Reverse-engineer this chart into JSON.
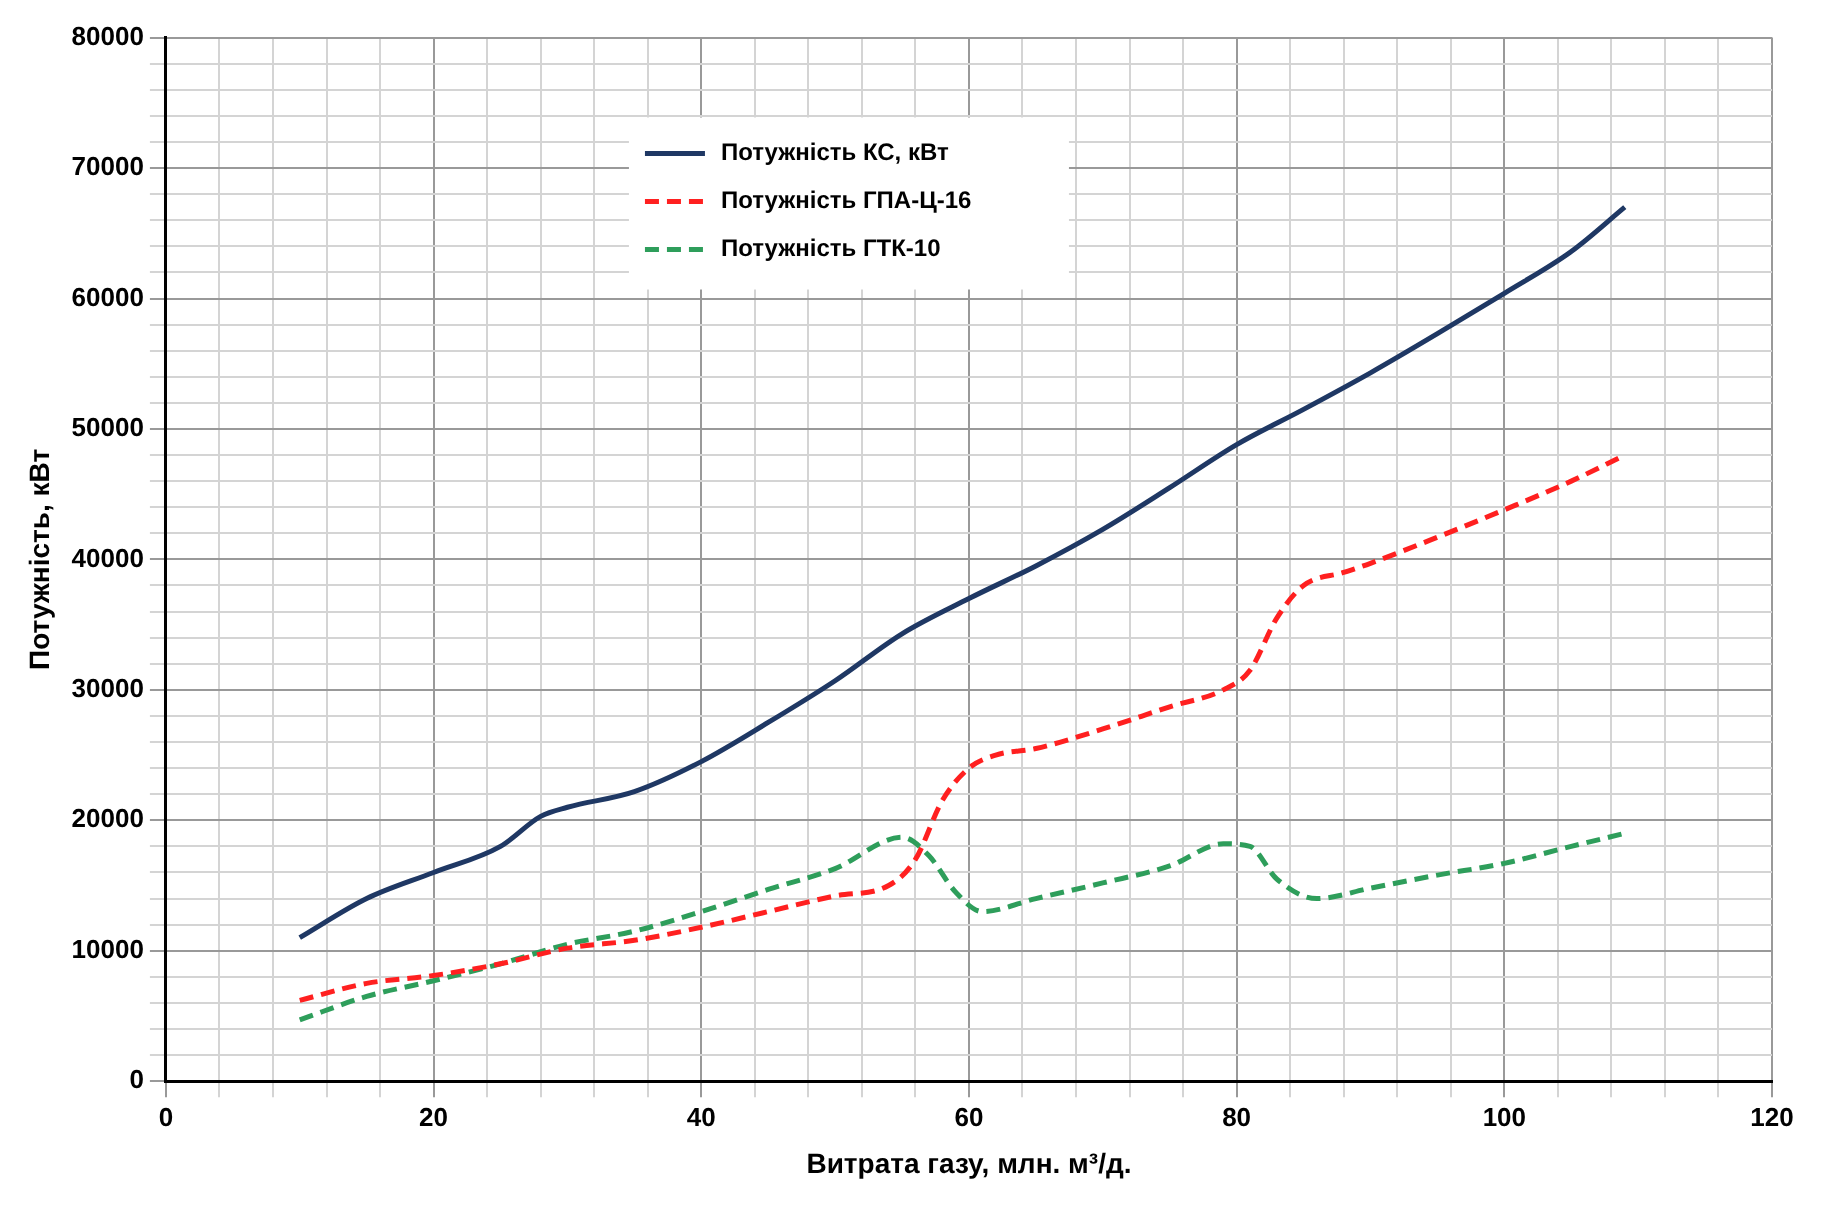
{
  "chart_data": {
    "type": "line",
    "xlabel": "Витрата газу, млн. м³/д.",
    "ylabel": "Потужність, кВт",
    "xlim": [
      0,
      120
    ],
    "ylim": [
      0,
      80000
    ],
    "xticks": [
      0,
      {
        "value": 4,
        "label": null
      },
      {
        "value": 8,
        "label": null
      },
      {
        "value": 12,
        "label": null
      },
      {
        "value": 16,
        "label": null
      },
      20,
      {
        "value": 24,
        "label": null
      },
      {
        "value": 28,
        "label": null
      },
      {
        "value": 32,
        "label": null
      },
      {
        "value": 36,
        "label": null
      },
      40,
      {
        "value": 44,
        "label": null
      },
      {
        "value": 48,
        "label": null
      },
      {
        "value": 52,
        "label": null
      },
      {
        "value": 56,
        "label": null
      },
      60,
      {
        "value": 64,
        "label": null
      },
      {
        "value": 68,
        "label": null
      },
      {
        "value": 72,
        "label": null
      },
      {
        "value": 76,
        "label": null
      },
      80,
      {
        "value": 84,
        "label": null
      },
      {
        "value": 88,
        "label": null
      },
      {
        "value": 92,
        "label": null
      },
      {
        "value": 96,
        "label": null
      },
      100,
      {
        "value": 104,
        "label": null
      },
      {
        "value": 108,
        "label": null
      },
      {
        "value": 112,
        "label": null
      },
      {
        "value": 116,
        "label": null
      },
      120
    ],
    "yticks": [
      0,
      {
        "value": 2000,
        "label": null
      },
      {
        "value": 4000,
        "label": null
      },
      {
        "value": 6000,
        "label": null
      },
      {
        "value": 8000,
        "label": null
      },
      10000,
      {
        "value": 12000,
        "label": null
      },
      {
        "value": 14000,
        "label": null
      },
      {
        "value": 16000,
        "label": null
      },
      {
        "value": 18000,
        "label": null
      },
      20000,
      {
        "value": 22000,
        "label": null
      },
      {
        "value": 24000,
        "label": null
      },
      {
        "value": 26000,
        "label": null
      },
      {
        "value": 28000,
        "label": null
      },
      30000,
      {
        "value": 32000,
        "label": null
      },
      {
        "value": 34000,
        "label": null
      },
      {
        "value": 36000,
        "label": null
      },
      {
        "value": 38000,
        "label": null
      },
      40000,
      {
        "value": 42000,
        "label": null
      },
      {
        "value": 44000,
        "label": null
      },
      {
        "value": 46000,
        "label": null
      },
      {
        "value": 48000,
        "label": null
      },
      50000,
      {
        "value": 52000,
        "label": null
      },
      {
        "value": 54000,
        "label": null
      },
      {
        "value": 56000,
        "label": null
      },
      {
        "value": 58000,
        "label": null
      },
      60000,
      {
        "value": 62000,
        "label": null
      },
      {
        "value": 64000,
        "label": null
      },
      {
        "value": 66000,
        "label": null
      },
      {
        "value": 68000,
        "label": null
      },
      70000,
      {
        "value": 72000,
        "label": null
      },
      {
        "value": 74000,
        "label": null
      },
      {
        "value": 76000,
        "label": null
      },
      {
        "value": 78000,
        "label": null
      },
      80000
    ],
    "grid": true,
    "legend": "top",
    "marker": "none",
    "series": [
      {
        "name": "Потужність КС, кВт",
        "color": "#1f3864",
        "line_style": "solid",
        "x": [
          10,
          15,
          20,
          25,
          28,
          30,
          35,
          40,
          45,
          50,
          55,
          60,
          65,
          70,
          75,
          80,
          85,
          90,
          95,
          100,
          105,
          109
        ],
        "values": [
          11000,
          14000,
          16000,
          18000,
          20300,
          21000,
          22200,
          24500,
          27500,
          30700,
          34300,
          37000,
          39500,
          42300,
          45500,
          48800,
          51500,
          54300,
          57300,
          60400,
          63600,
          67000
        ]
      },
      {
        "name": "Потужність ГПА-Ц-16",
        "color": "#ff2020",
        "line_style": "dashed",
        "x": [
          10,
          15,
          20,
          25,
          30,
          35,
          40,
          45,
          50,
          54,
          56,
          58,
          60,
          62,
          65,
          70,
          75,
          79,
          81,
          83,
          85,
          88,
          90,
          95,
          100,
          105,
          109
        ],
        "values": [
          6200,
          7500,
          8100,
          9000,
          10200,
          10800,
          11800,
          13000,
          14200,
          15000,
          17000,
          21500,
          24000,
          25000,
          25500,
          27000,
          28700,
          30000,
          31500,
          35500,
          38000,
          39000,
          39700,
          41700,
          43800,
          46000,
          48000
        ]
      },
      {
        "name": "Потужність ГТК-10",
        "color": "#2e9e5b",
        "line_style": "dashed",
        "x": [
          10,
          15,
          20,
          25,
          30,
          35,
          40,
          45,
          50,
          55,
          57,
          59,
          61,
          65,
          70,
          75,
          79,
          81,
          83,
          86,
          90,
          95,
          100,
          105,
          109
        ],
        "values": [
          4700,
          6500,
          7700,
          9000,
          10500,
          11500,
          13000,
          14700,
          16300,
          18700,
          17300,
          14500,
          13000,
          14000,
          15200,
          16500,
          18200,
          18000,
          15500,
          14000,
          14800,
          15800,
          16700,
          18000,
          19000
        ]
      }
    ]
  }
}
